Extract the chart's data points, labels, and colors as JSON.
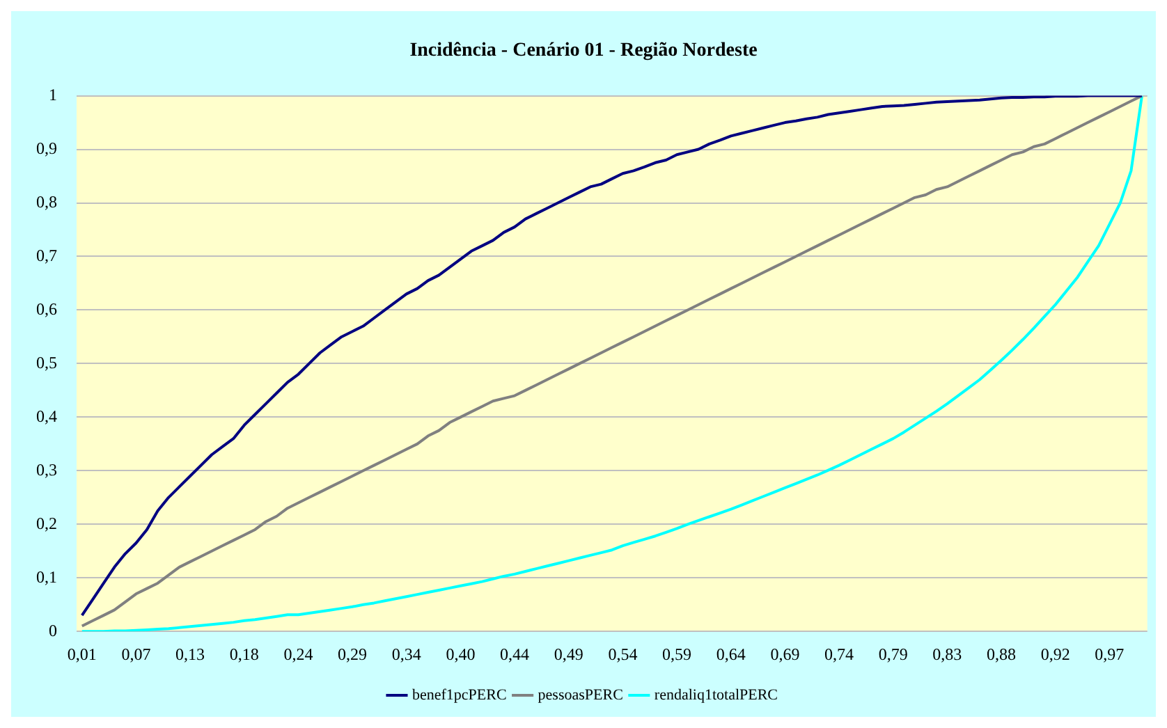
{
  "chart_data": {
    "type": "line",
    "title": "Incidência - Cenário 01 - Região Nordeste",
    "categories": [
      "0,01",
      null,
      null,
      null,
      null,
      "0,07",
      null,
      null,
      null,
      null,
      "0,13",
      null,
      null,
      null,
      null,
      "0,18",
      null,
      null,
      null,
      null,
      "0,24",
      null,
      null,
      null,
      null,
      "0,29",
      null,
      null,
      null,
      null,
      "0,34",
      null,
      null,
      null,
      null,
      "0,40",
      null,
      null,
      null,
      null,
      "0,44",
      null,
      null,
      null,
      null,
      "0,49",
      null,
      null,
      null,
      null,
      "0,54",
      null,
      null,
      null,
      null,
      "0,59",
      null,
      null,
      null,
      null,
      "0,64",
      null,
      null,
      null,
      null,
      "0,69",
      null,
      null,
      null,
      null,
      "0,74",
      null,
      null,
      null,
      null,
      "0,79",
      null,
      null,
      null,
      null,
      "0,83",
      null,
      null,
      null,
      null,
      "0,88",
      null,
      null,
      null,
      null,
      "0,92",
      null,
      null,
      null,
      null,
      "0,97",
      null,
      null,
      null
    ],
    "series": [
      {
        "name": "benef1pcPERC",
        "color": "#000080",
        "values": [
          0.03,
          0.06,
          0.09,
          0.12,
          0.145,
          0.165,
          0.19,
          0.225,
          0.25,
          0.27,
          0.29,
          0.31,
          0.33,
          0.345,
          0.36,
          0.385,
          0.405,
          0.425,
          0.445,
          0.465,
          0.48,
          0.5,
          0.52,
          0.535,
          0.55,
          0.56,
          0.57,
          0.585,
          0.6,
          0.615,
          0.63,
          0.64,
          0.655,
          0.665,
          0.68,
          0.695,
          0.71,
          0.72,
          0.73,
          0.745,
          0.755,
          0.77,
          0.78,
          0.79,
          0.8,
          0.81,
          0.82,
          0.83,
          0.835,
          0.845,
          0.855,
          0.86,
          0.867,
          0.875,
          0.88,
          0.89,
          0.895,
          0.9,
          0.91,
          0.917,
          0.925,
          0.93,
          0.935,
          0.94,
          0.945,
          0.95,
          0.953,
          0.957,
          0.96,
          0.965,
          0.968,
          0.971,
          0.974,
          0.977,
          0.98,
          0.981,
          0.982,
          0.984,
          0.986,
          0.988,
          0.989,
          0.99,
          0.991,
          0.992,
          0.994,
          0.996,
          0.997,
          0.997,
          0.998,
          0.998,
          0.999,
          0.999,
          0.999,
          1,
          1,
          1,
          1,
          1,
          1
        ]
      },
      {
        "name": "pessoasPERC",
        "color": "#808080",
        "values": [
          0.01,
          0.02,
          0.03,
          0.04,
          0.055,
          0.07,
          0.08,
          0.09,
          0.105,
          0.12,
          0.13,
          0.14,
          0.15,
          0.16,
          0.17,
          0.18,
          0.19,
          0.205,
          0.215,
          0.23,
          0.24,
          0.25,
          0.26,
          0.27,
          0.28,
          0.29,
          0.3,
          0.31,
          0.32,
          0.33,
          0.34,
          0.35,
          0.365,
          0.375,
          0.39,
          0.4,
          0.41,
          0.42,
          0.43,
          0.435,
          0.44,
          0.45,
          0.46,
          0.47,
          0.48,
          0.49,
          0.5,
          0.51,
          0.52,
          0.53,
          0.54,
          0.55,
          0.56,
          0.57,
          0.58,
          0.59,
          0.6,
          0.61,
          0.62,
          0.63,
          0.64,
          0.65,
          0.66,
          0.67,
          0.68,
          0.69,
          0.7,
          0.71,
          0.72,
          0.73,
          0.74,
          0.75,
          0.76,
          0.77,
          0.78,
          0.79,
          0.8,
          0.81,
          0.815,
          0.825,
          0.83,
          0.84,
          0.85,
          0.86,
          0.87,
          0.88,
          0.89,
          0.895,
          0.905,
          0.91,
          0.92,
          0.93,
          0.94,
          0.95,
          0.96,
          0.97,
          0.98,
          0.99,
          1
        ]
      },
      {
        "name": "rendaliq1totalPERC",
        "color": "#00ffff",
        "values": [
          0,
          0,
          0,
          0.001,
          0.001,
          0.002,
          0.003,
          0.004,
          0.005,
          0.007,
          0.009,
          0.011,
          0.013,
          0.015,
          0.017,
          0.02,
          0.022,
          0.025,
          0.028,
          0.031,
          0.031,
          0.034,
          0.037,
          0.04,
          0.043,
          0.046,
          0.05,
          0.053,
          0.057,
          0.061,
          0.065,
          0.069,
          0.073,
          0.077,
          0.081,
          0.085,
          0.089,
          0.093,
          0.098,
          0.103,
          0.107,
          0.112,
          0.117,
          0.122,
          0.127,
          0.132,
          0.137,
          0.142,
          0.147,
          0.152,
          0.16,
          0.166,
          0.172,
          0.178,
          0.185,
          0.192,
          0.2,
          0.207,
          0.214,
          0.221,
          0.228,
          0.236,
          0.244,
          0.252,
          0.26,
          0.268,
          0.276,
          0.284,
          0.292,
          0.301,
          0.31,
          0.32,
          0.33,
          0.34,
          0.35,
          0.36,
          0.372,
          0.385,
          0.398,
          0.411,
          0.425,
          0.44,
          0.455,
          0.47,
          0.488,
          0.506,
          0.525,
          0.545,
          0.566,
          0.588,
          0.61,
          0.635,
          0.66,
          0.69,
          0.72,
          0.76,
          0.8,
          0.86,
          1
        ]
      }
    ],
    "ylim": [
      0,
      1
    ],
    "yticks": [
      0,
      {
        "value": 0.1,
        "label": "0,1"
      },
      {
        "value": 0.2,
        "label": "0,2"
      },
      {
        "value": 0.3,
        "label": "0,3"
      },
      {
        "value": 0.4,
        "label": "0,4"
      },
      {
        "value": 0.5,
        "label": "0,5"
      },
      {
        "value": 0.6,
        "label": "0,6"
      },
      {
        "value": 0.7,
        "label": "0,7"
      },
      {
        "value": 0.8,
        "label": "0,8"
      },
      {
        "value": 0.9,
        "label": "0,9"
      },
      1
    ],
    "grid": "y",
    "legend": "bottom",
    "marker": "none",
    "line_style": "solid"
  }
}
